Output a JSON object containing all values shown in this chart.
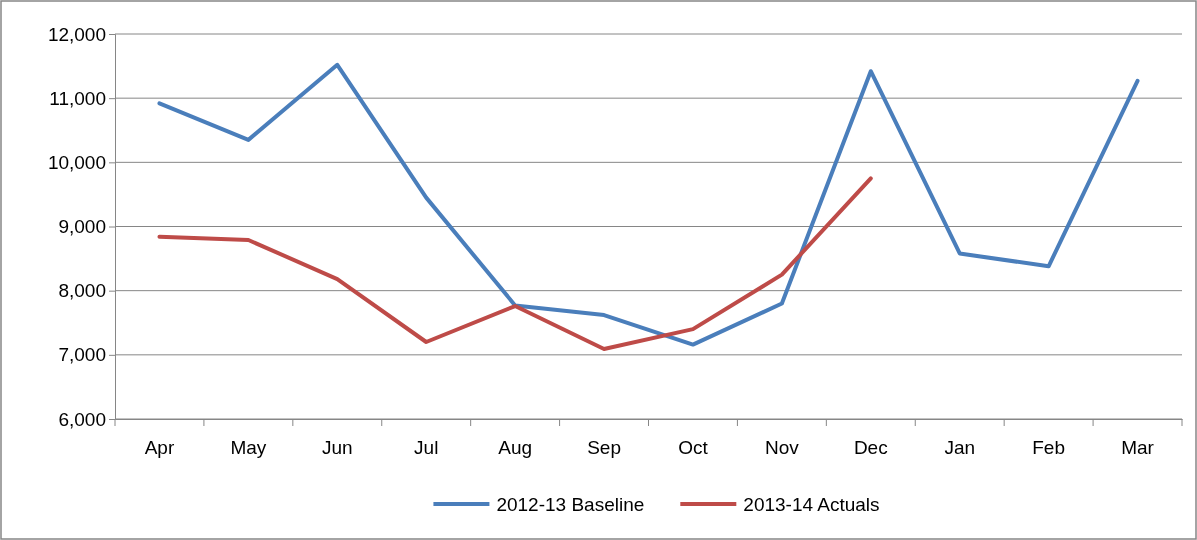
{
  "chart_data": {
    "type": "line",
    "categories": [
      "Apr",
      "May",
      "Jun",
      "Jul",
      "Aug",
      "Sep",
      "Oct",
      "Nov",
      "Dec",
      "Jan",
      "Feb",
      "Mar"
    ],
    "series": [
      {
        "name": "2012-13 Baseline",
        "color": "#4a7ebb",
        "values": [
          10920,
          10350,
          11520,
          9450,
          7770,
          7620,
          7160,
          7800,
          11420,
          8580,
          8380,
          11270
        ]
      },
      {
        "name": "2013-14 Actuals",
        "color": "#be4b48",
        "values": [
          8840,
          8790,
          8180,
          7200,
          7760,
          7090,
          7400,
          8250,
          9750,
          null,
          null,
          null
        ]
      }
    ],
    "ylim": [
      6000,
      12000
    ],
    "yticks": [
      {
        "value": 6000,
        "label": "6,000"
      },
      {
        "value": 7000,
        "label": "7,000"
      },
      {
        "value": 8000,
        "label": "8,000"
      },
      {
        "value": 9000,
        "label": "9,000"
      },
      {
        "value": 10000,
        "label": "10,000"
      },
      {
        "value": 11000,
        "label": "11,000"
      },
      {
        "value": 12000,
        "label": "12,000"
      }
    ],
    "grid": "y",
    "legend": "bottom",
    "marker": "none",
    "line_style": "solid"
  }
}
